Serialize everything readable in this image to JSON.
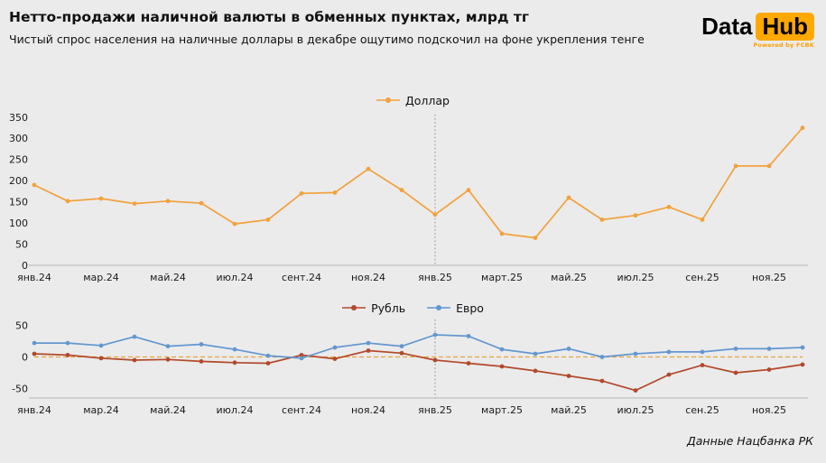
{
  "header": {
    "title": "Нетто-продажи наличной валюты в обменных пунктах, млрд тг",
    "subtitle": "Чистый спрос населения на наличные доллары в декабре ощутимо подскочил на фоне укрепления тенге"
  },
  "logo": {
    "data": "Data",
    "hub": "Hub",
    "powered": "Powered by FCBK"
  },
  "footer": {
    "source": "Данные Нацбанка РК"
  },
  "colors": {
    "background": "#ebebeb",
    "dollar": "#f2a13c",
    "ruble": "#b2492b",
    "euro": "#6397d0",
    "logo_accent": "#ffa800",
    "powered_text": "#ff9d00",
    "reference_line": "#8a8a8a",
    "zero_line": "#e8a33d"
  },
  "chart_data": [
    {
      "type": "line",
      "title": "",
      "legend": [
        {
          "key": "dollar",
          "label": "Доллар",
          "color": "#f2a13c"
        }
      ],
      "x_tick_labels": [
        "янв.24",
        "мар.24",
        "май.24",
        "июл.24",
        "сент.24",
        "ноя.24",
        "янв.25",
        "март.25",
        "май.25",
        "июл.25",
        "сен.25",
        "ноя.25"
      ],
      "ylim": [
        0,
        350
      ],
      "yticks": [
        350,
        300,
        250,
        200,
        150,
        100,
        50,
        0
      ],
      "vline_index": 12,
      "grid": false,
      "legend_position": "top-center",
      "series": [
        {
          "name": "Доллар",
          "color": "#f2a13c",
          "values": [
            190,
            152,
            158,
            146,
            152,
            147,
            98,
            108,
            170,
            172,
            228,
            178,
            120,
            178,
            75,
            65,
            160,
            108,
            118,
            138,
            108,
            235,
            235,
            325
          ]
        }
      ]
    },
    {
      "type": "line",
      "title": "",
      "legend": [
        {
          "key": "ruble",
          "label": "Рубль",
          "color": "#b2492b"
        },
        {
          "key": "euro",
          "label": "Евро",
          "color": "#6397d0"
        }
      ],
      "x_tick_labels": [
        "янв.24",
        "мар.24",
        "май.24",
        "июл.24",
        "сент.24",
        "ноя.24",
        "янв.25",
        "март.25",
        "май.25",
        "июл.25",
        "сен.25",
        "ноя.25"
      ],
      "ylim": [
        -65,
        55
      ],
      "yticks": [
        50,
        0,
        -50
      ],
      "vline_index": 12,
      "hline_y": 0,
      "grid": false,
      "legend_position": "top-center",
      "series": [
        {
          "name": "Рубль",
          "color": "#b2492b",
          "values": [
            5,
            3,
            -2,
            -5,
            -4,
            -7,
            -9,
            -10,
            3,
            -3,
            10,
            6,
            -5,
            -10,
            -15,
            -22,
            -30,
            -38,
            -53,
            -28,
            -13,
            -25,
            -20,
            -12
          ]
        },
        {
          "name": "Евро",
          "color": "#6397d0",
          "values": [
            22,
            22,
            18,
            32,
            17,
            20,
            12,
            2,
            -2,
            15,
            22,
            17,
            35,
            33,
            12,
            5,
            13,
            0,
            5,
            8,
            8,
            13,
            13,
            15
          ]
        }
      ]
    }
  ]
}
